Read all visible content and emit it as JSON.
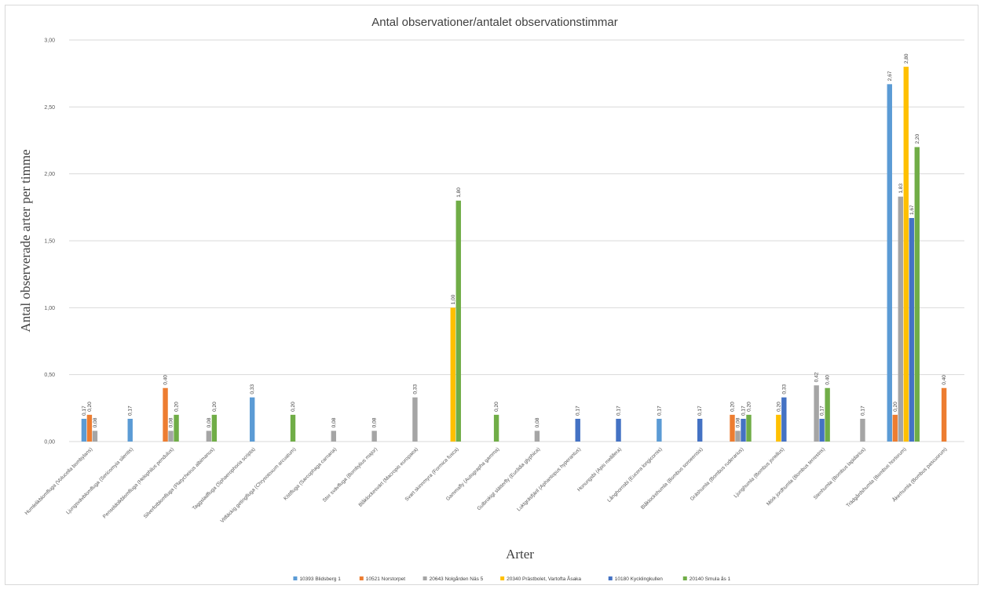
{
  "chart_data": {
    "type": "bar",
    "title": "Antal observationer/antalet observationstimmar",
    "xlabel": "Arter",
    "ylabel": "Antal observerade arter per timme",
    "ylim": [
      0,
      3
    ],
    "yticks": [
      "0,00",
      "0,50",
      "1,00",
      "1,50",
      "2,00",
      "2,50",
      "3,00"
    ],
    "grid": true,
    "legend_position": "bottom",
    "categories": [
      "Humlelikblomfluga (Volucella bombylans)",
      "Ljungsvävblomfluga (Sericomyia silentis)",
      "Penseldolkblomfluga (Helophilus pendulus)",
      "Silverfotblomfluga (Platycheirus albimanus)",
      "Taggsladfluga (Sphaerophoria scripta)",
      "Vitfläckig getingfluga (Chrysotoxum arcuatum)",
      "Köttfluga (Sarcophaga carnaria)",
      "Stor svävfluga (Bombylius major)",
      "Blåklockesvärt (Macropis europaea)",
      "Svart skinnmyra (Formica fusca)",
      "Gammafly (Autographa gamma)",
      "Gulbrokigt slätterfly (Euclidia glyphica)",
      "Luktgräsfjäril (Aphantopus hyperantus)",
      "Honungsbi (Apis mellifera)",
      "Långhornsbi (Eucera longicornis)",
      "Blåklockshumla (Bombus soroeensis)",
      "Gräshumla (Bombus ruderarius)",
      "Ljunghumla (Bombus jonellus)",
      "Mörk jordhumla (Bombus terrestris)",
      "Stenhumla (Bombus lapidarius)",
      "Trädgårdshumla (Bombus hortorum)",
      "Åkerhumla (Bombus pascuorum)"
    ],
    "series": [
      {
        "name": "10393 Blidsberg 1",
        "color": "#5b9bd5",
        "values": [
          0.17,
          0.17,
          null,
          null,
          0.33,
          null,
          null,
          null,
          null,
          null,
          null,
          null,
          null,
          null,
          0.17,
          null,
          null,
          null,
          null,
          null,
          2.67,
          null
        ],
        "labels": [
          "0,17",
          "0,17",
          "",
          "",
          "0,33",
          "",
          "",
          "",
          "",
          "",
          "",
          "",
          "",
          "",
          "0,17",
          "",
          "",
          "",
          "",
          "",
          "2,67",
          ""
        ]
      },
      {
        "name": "10521 Norstorpet",
        "color": "#ed7d31",
        "values": [
          0.2,
          null,
          0.4,
          null,
          null,
          null,
          null,
          null,
          null,
          null,
          null,
          null,
          null,
          null,
          null,
          null,
          0.2,
          null,
          null,
          null,
          0.2,
          0.4
        ],
        "labels": [
          "0,20",
          "",
          "0,40",
          "",
          "",
          "",
          "",
          "",
          "",
          "",
          "",
          "",
          "",
          "",
          "",
          "",
          "0,20",
          "",
          "",
          "",
          "0,20",
          "0,40"
        ]
      },
      {
        "name": "20643 Nolgården Näs 5",
        "color": "#a5a5a5",
        "values": [
          0.08,
          null,
          0.08,
          0.08,
          null,
          null,
          0.08,
          0.08,
          0.33,
          null,
          null,
          0.08,
          null,
          null,
          null,
          null,
          0.08,
          null,
          0.42,
          0.17,
          1.83,
          null
        ],
        "labels": [
          "0,08",
          "",
          "0,08",
          "0,08",
          "",
          "",
          "0,08",
          "0,08",
          "0,33",
          "",
          "",
          "0,08",
          "",
          "",
          "",
          "",
          "0,08",
          "",
          "0,42",
          "0,17",
          "1,83",
          ""
        ]
      },
      {
        "name": "20340 Prästbolet, Vartofta Åsaka",
        "color": "#ffc000",
        "values": [
          null,
          null,
          null,
          null,
          null,
          null,
          null,
          null,
          null,
          1.0,
          null,
          null,
          null,
          null,
          null,
          null,
          null,
          0.2,
          null,
          null,
          2.8,
          null
        ],
        "labels": [
          "",
          "",
          "",
          "",
          "",
          "",
          "",
          "",
          "",
          "1,00",
          "",
          "",
          "",
          "",
          "",
          "",
          "",
          "0,20",
          "",
          "",
          "2,80",
          ""
        ]
      },
      {
        "name": "10180 Kycklingkullen",
        "color": "#4472c4",
        "values": [
          null,
          null,
          null,
          null,
          null,
          null,
          null,
          null,
          null,
          null,
          null,
          null,
          0.17,
          0.17,
          null,
          0.17,
          0.17,
          0.33,
          0.17,
          null,
          1.67,
          null
        ],
        "labels": [
          "",
          "",
          "",
          "",
          "",
          "",
          "",
          "",
          "",
          "",
          "",
          "",
          "0,17",
          "0,17",
          "",
          "0,17",
          "0,17",
          "0,33",
          "0,17",
          "",
          "1,67",
          ""
        ]
      },
      {
        "name": "20140 Smula ås 1",
        "color": "#70ad47",
        "values": [
          null,
          null,
          0.2,
          0.2,
          null,
          0.2,
          null,
          null,
          null,
          1.8,
          0.2,
          null,
          null,
          null,
          null,
          null,
          0.2,
          null,
          0.4,
          null,
          2.2,
          null
        ],
        "labels": [
          "",
          "",
          "0,20",
          "0,20",
          "",
          "0,20",
          "",
          "",
          "",
          "1,80",
          "0,20",
          "",
          "",
          "",
          "",
          "",
          "0,20",
          "",
          "0,40",
          "",
          "2,20",
          ""
        ]
      }
    ]
  }
}
